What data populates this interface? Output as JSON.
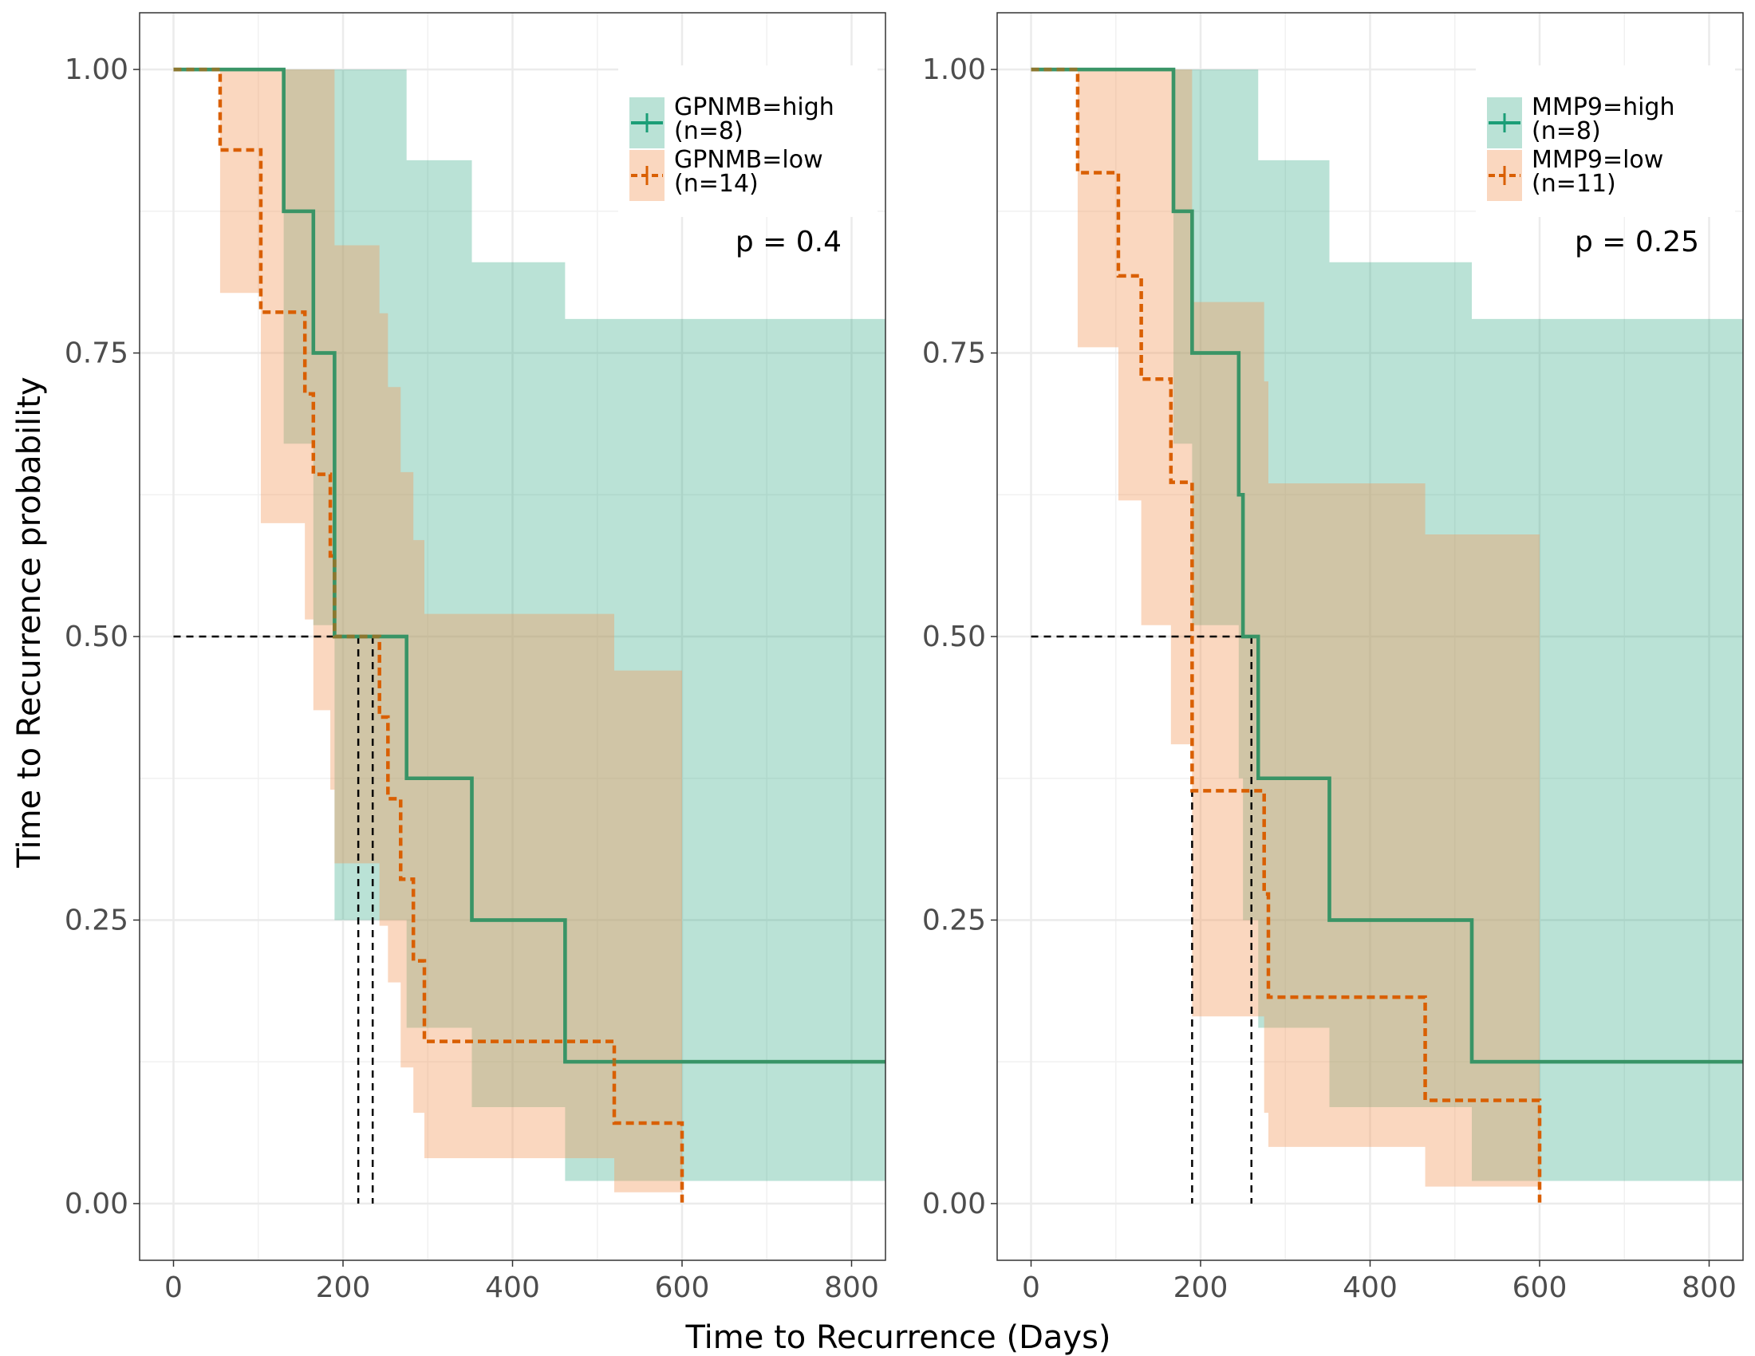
{
  "xlabel": "Time to Recurrence (Days)",
  "ylabel": "Time to Recurrence probability",
  "colors": {
    "high": "#1b9e77",
    "low": "#d95f02",
    "high_fill": "#1b9e77",
    "low_fill": "#f39c5f"
  },
  "chart_data": [
    {
      "type": "line",
      "subtype": "kaplan-meier",
      "xlim": [
        -40,
        840
      ],
      "ylim": [
        -0.05,
        1.05
      ],
      "x_ticks": [
        0,
        200,
        400,
        600,
        800
      ],
      "x_tick_labels": [
        "0",
        "200",
        "400",
        "600",
        "800"
      ],
      "y_ticks": [
        0,
        0.25,
        0.5,
        0.75,
        1
      ],
      "y_tick_labels": [
        "0.00",
        "0.25",
        "0.50",
        "0.75",
        "1.00"
      ],
      "p_value": "p = 0.4",
      "legend_position": "top-right",
      "medians": [
        218,
        235
      ],
      "series": [
        {
          "key": "high",
          "legend_label": "GPNMB=high",
          "legend_n": "(n=8)",
          "x_end": 840,
          "steps": [
            [
              0,
              1
            ],
            [
              130,
              0.875
            ],
            [
              165,
              0.75
            ],
            [
              190,
              0.5
            ],
            [
              275,
              0.375
            ],
            [
              352,
              0.25
            ],
            [
              462,
              0.125
            ]
          ],
          "upper": [
            [
              0,
              1
            ],
            [
              275,
              0.92
            ],
            [
              352,
              0.83
            ],
            [
              462,
              0.78
            ]
          ],
          "lower": [
            [
              0,
              1
            ],
            [
              130,
              0.67
            ],
            [
              165,
              0.51
            ],
            [
              190,
              0.25
            ],
            [
              275,
              0.155
            ],
            [
              352,
              0.085
            ],
            [
              462,
              0.02
            ]
          ]
        },
        {
          "key": "low",
          "legend_label": "GPNMB=low",
          "legend_n": "(n=14)",
          "dashed": true,
          "x_end": 600,
          "steps": [
            [
              0,
              1
            ],
            [
              55,
              0.929
            ],
            [
              103,
              0.786
            ],
            [
              155,
              0.714
            ],
            [
              165,
              0.643
            ],
            [
              185,
              0.571
            ],
            [
              190,
              0.5
            ],
            [
              243,
              0.429
            ],
            [
              253,
              0.357
            ],
            [
              268,
              0.286
            ],
            [
              283,
              0.214
            ],
            [
              296,
              0.143
            ],
            [
              520,
              0.071
            ],
            [
              600,
              0.0
            ]
          ],
          "upper": [
            [
              0,
              1
            ],
            [
              190,
              0.845
            ],
            [
              243,
              0.785
            ],
            [
              253,
              0.72
            ],
            [
              268,
              0.645
            ],
            [
              283,
              0.585
            ],
            [
              296,
              0.52
            ],
            [
              520,
              0.47
            ]
          ],
          "lower": [
            [
              0,
              1
            ],
            [
              55,
              0.803
            ],
            [
              103,
              0.6
            ],
            [
              155,
              0.515
            ],
            [
              165,
              0.435
            ],
            [
              185,
              0.365
            ],
            [
              190,
              0.3
            ],
            [
              243,
              0.245
            ],
            [
              253,
              0.195
            ],
            [
              268,
              0.12
            ],
            [
              283,
              0.08
            ],
            [
              296,
              0.04
            ],
            [
              520,
              0.01
            ]
          ]
        }
      ]
    },
    {
      "type": "line",
      "subtype": "kaplan-meier",
      "xlim": [
        -40,
        840
      ],
      "ylim": [
        -0.05,
        1.05
      ],
      "x_ticks": [
        0,
        200,
        400,
        600,
        800
      ],
      "x_tick_labels": [
        "0",
        "200",
        "400",
        "600",
        "800"
      ],
      "y_ticks": [
        0,
        0.25,
        0.5,
        0.75,
        1
      ],
      "y_tick_labels": [
        "0.00",
        "0.25",
        "0.50",
        "0.75",
        "1.00"
      ],
      "p_value": "p = 0.25",
      "legend_position": "top-right",
      "medians": [
        190,
        260
      ],
      "series": [
        {
          "key": "high",
          "legend_label": "MMP9=high",
          "legend_n": "(n=8)",
          "x_end": 840,
          "steps": [
            [
              0,
              1
            ],
            [
              168,
              0.875
            ],
            [
              190,
              0.75
            ],
            [
              245,
              0.625
            ],
            [
              250,
              0.5
            ],
            [
              268,
              0.375
            ],
            [
              352,
              0.25
            ],
            [
              520,
              0.125
            ]
          ],
          "upper": [
            [
              0,
              1
            ],
            [
              268,
              0.92
            ],
            [
              352,
              0.83
            ],
            [
              520,
              0.78
            ]
          ],
          "lower": [
            [
              0,
              1
            ],
            [
              168,
              0.67
            ],
            [
              190,
              0.51
            ],
            [
              245,
              0.375
            ],
            [
              250,
              0.25
            ],
            [
              268,
              0.155
            ],
            [
              352,
              0.085
            ],
            [
              520,
              0.02
            ]
          ]
        },
        {
          "key": "low",
          "legend_label": "MMP9=low",
          "legend_n": "(n=11)",
          "dashed": true,
          "x_end": 600,
          "steps": [
            [
              0,
              1
            ],
            [
              55,
              0.909
            ],
            [
              103,
              0.818
            ],
            [
              130,
              0.727
            ],
            [
              165,
              0.636
            ],
            [
              190,
              0.364
            ],
            [
              275,
              0.273
            ],
            [
              280,
              0.182
            ],
            [
              465,
              0.091
            ],
            [
              600,
              0.0
            ]
          ],
          "upper": [
            [
              0,
              1
            ],
            [
              190,
              0.795
            ],
            [
              275,
              0.725
            ],
            [
              280,
              0.635
            ],
            [
              465,
              0.59
            ]
          ],
          "lower": [
            [
              0,
              1
            ],
            [
              55,
              0.755
            ],
            [
              103,
              0.62
            ],
            [
              130,
              0.51
            ],
            [
              165,
              0.405
            ],
            [
              190,
              0.165
            ],
            [
              275,
              0.08
            ],
            [
              280,
              0.05
            ],
            [
              465,
              0.015
            ]
          ]
        }
      ]
    }
  ]
}
